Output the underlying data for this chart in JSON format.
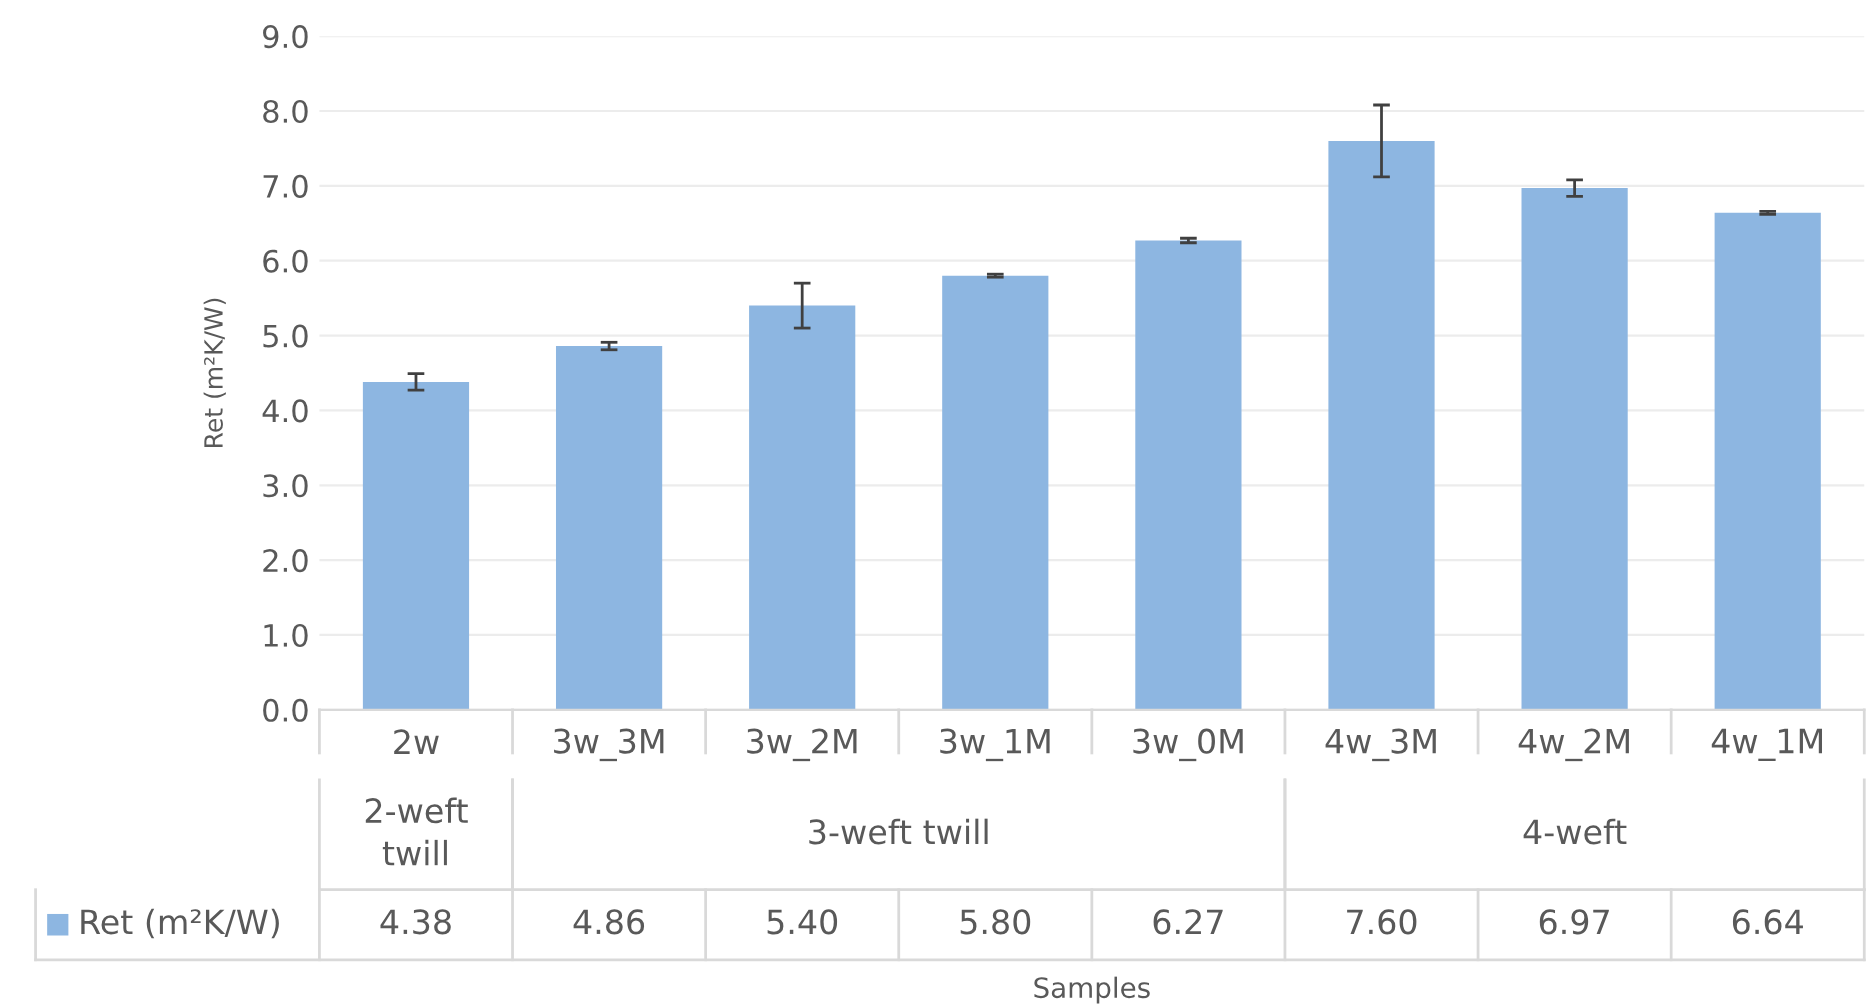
{
  "chart_data": {
    "type": "bar",
    "ylabel": "Ret (m²K/W)",
    "categories": [
      "2w",
      "3w_3M",
      "3w_2M",
      "3w_1M",
      "3w_0M",
      "4w_3M",
      "4w_2M",
      "4w_1M"
    ],
    "series": [
      {
        "name": "Ret (m²K/W)",
        "color": "#8db6e1",
        "values": [
          4.38,
          4.86,
          5.4,
          5.8,
          6.27,
          7.6,
          6.97,
          6.64
        ],
        "errors": [
          0.11,
          0.05,
          0.3,
          0.02,
          0.03,
          0.48,
          0.11,
          0.02
        ],
        "value_labels": [
          "4.38",
          "4.86",
          "5.40",
          "5.80",
          "6.27",
          "7.60",
          "6.97",
          "6.64"
        ]
      }
    ],
    "annotations": [
      "2-weft\ntwill",
      "3-weft twill",
      "4-weft",
      "Samples"
    ],
    "ylim": [
      0,
      9
    ],
    "yticks": [
      {
        "value": 0,
        "label": "0.0"
      },
      {
        "value": 1,
        "label": "1.0"
      },
      {
        "value": 2,
        "label": "2.0"
      },
      {
        "value": 3,
        "label": "3.0"
      },
      {
        "value": 4,
        "label": "4.0"
      },
      {
        "value": 5,
        "label": "5.0"
      },
      {
        "value": 6,
        "label": "6.0"
      },
      {
        "value": 7,
        "label": "7.0"
      },
      {
        "value": 8,
        "label": "8.0"
      },
      {
        "value": 9,
        "label": "9.0"
      }
    ],
    "grid": "y",
    "legend": "bottom"
  }
}
